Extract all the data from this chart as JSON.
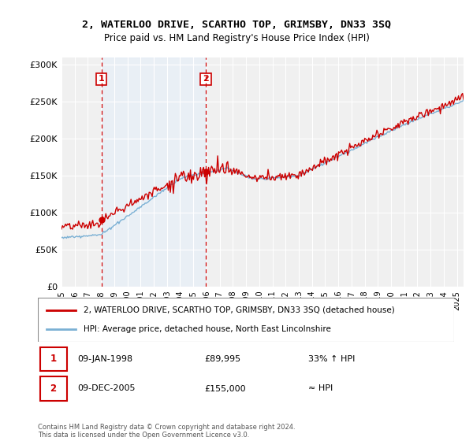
{
  "title": "2, WATERLOO DRIVE, SCARTHO TOP, GRIMSBY, DN33 3SQ",
  "subtitle": "Price paid vs. HM Land Registry's House Price Index (HPI)",
  "hpi_label": "HPI: Average price, detached house, North East Lincolnshire",
  "house_label": "2, WATERLOO DRIVE, SCARTHO TOP, GRIMSBY, DN33 3SQ (detached house)",
  "sale1_date_label": "09-JAN-1998",
  "sale1_price": 89995,
  "sale1_price_label": "£89,995",
  "sale1_hpi_label": "33% ↑ HPI",
  "sale1_year": 1998.04,
  "sale2_date_label": "09-DEC-2005",
  "sale2_price": 155000,
  "sale2_price_label": "£155,000",
  "sale2_hpi_label": "≈ HPI",
  "sale2_year": 2005.94,
  "xmin": 1995.0,
  "xmax": 2025.5,
  "ymin": 0,
  "ymax": 310000,
  "yticks": [
    0,
    50000,
    100000,
    150000,
    200000,
    250000,
    300000
  ],
  "ytick_labels": [
    "£0",
    "£50K",
    "£100K",
    "£150K",
    "£200K",
    "£250K",
    "£300K"
  ],
  "house_color": "#cc0000",
  "hpi_color": "#7ab0d4",
  "shade_color": "#ddeeff",
  "footnote": "Contains HM Land Registry data © Crown copyright and database right 2024.\nThis data is licensed under the Open Government Licence v3.0.",
  "bg_color": "#ffffff",
  "plot_bg_color": "#f0f0f0"
}
